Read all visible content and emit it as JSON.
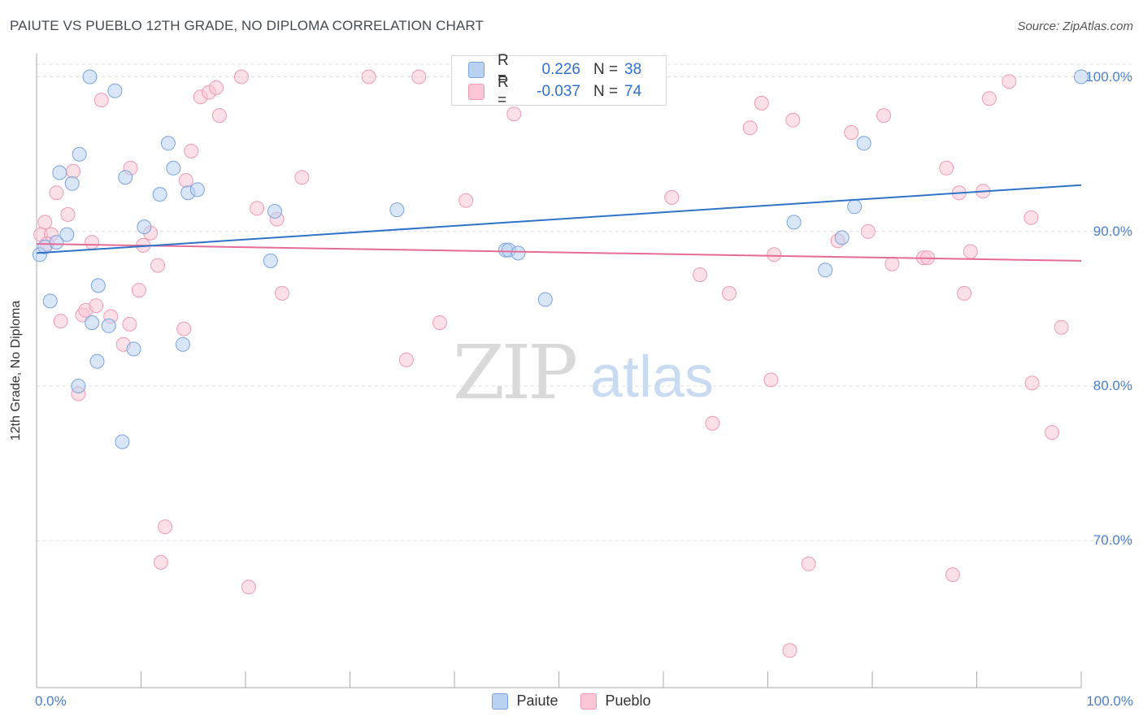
{
  "header": {
    "title": "PAIUTE VS PUEBLO 12TH GRADE, NO DIPLOMA CORRELATION CHART",
    "source": "Source: ZipAtlas.com"
  },
  "watermark": {
    "zip": "ZIP",
    "atlas": "atlas"
  },
  "legend": {
    "series": [
      {
        "swatch": "blue",
        "r_label": "R =",
        "r_value": "0.226",
        "n_label": "N =",
        "n_value": "38"
      },
      {
        "swatch": "pink",
        "r_label": "R =",
        "r_value": "-0.037",
        "n_label": "N =",
        "n_value": "74"
      }
    ]
  },
  "bottom_legend": [
    "Paiute",
    "Pueblo"
  ],
  "colors": {
    "paiute_fill": "#b9d2f2",
    "paiute_stroke": "#7aa3dc",
    "paiute_line": "#2f72c9",
    "pueblo_fill": "#f9c6d6",
    "pueblo_stroke": "#ee9ab4",
    "pueblo_line": "#e46c95",
    "value_text": "#2f6fcf",
    "grid": "#dcdcdc"
  },
  "chart_data": {
    "type": "scatter",
    "title": "PAIUTE VS PUEBLO 12TH GRADE, NO DIPLOMA CORRELATION CHART",
    "xlabel": "",
    "ylabel": "12th Grade, No Diploma",
    "xlim": [
      0,
      100
    ],
    "ylim": [
      60.5,
      101.5
    ],
    "x_tick_labels": [
      "0.0%",
      "100.0%"
    ],
    "y_ticks": [
      70,
      80,
      90,
      100
    ],
    "y_tick_labels": [
      "70.0%",
      "80.0%",
      "90.0%",
      "100.0%"
    ],
    "series": [
      {
        "name": "Paiute",
        "color": "blue",
        "r": 0.226,
        "n": 38,
        "trend": {
          "x": [
            0,
            100
          ],
          "y": [
            88.6,
            93.0
          ]
        },
        "points": [
          [
            0.3,
            88.5
          ],
          [
            0.8,
            89.0
          ],
          [
            1.3,
            85.5
          ],
          [
            1.9,
            89.3
          ],
          [
            2.2,
            93.8
          ],
          [
            2.9,
            89.8
          ],
          [
            3.4,
            93.1
          ],
          [
            4.1,
            95.0
          ],
          [
            4.0,
            80.0
          ],
          [
            5.1,
            100.0
          ],
          [
            5.3,
            84.1
          ],
          [
            5.9,
            86.5
          ],
          [
            5.8,
            81.6
          ],
          [
            6.9,
            83.9
          ],
          [
            7.5,
            99.1
          ],
          [
            8.2,
            76.4
          ],
          [
            8.5,
            93.5
          ],
          [
            9.3,
            82.4
          ],
          [
            10.3,
            90.3
          ],
          [
            11.8,
            92.4
          ],
          [
            12.6,
            95.7
          ],
          [
            13.1,
            94.1
          ],
          [
            14.0,
            82.7
          ],
          [
            14.5,
            92.5
          ],
          [
            15.4,
            92.7
          ],
          [
            22.4,
            88.1
          ],
          [
            22.8,
            91.3
          ],
          [
            34.5,
            91.4
          ],
          [
            44.9,
            88.8
          ],
          [
            45.2,
            88.8
          ],
          [
            46.1,
            88.6
          ],
          [
            48.7,
            85.6
          ],
          [
            72.5,
            90.6
          ],
          [
            75.5,
            87.5
          ],
          [
            77.1,
            89.6
          ],
          [
            78.3,
            91.6
          ],
          [
            79.2,
            95.7
          ],
          [
            100.0,
            100.0
          ]
        ]
      },
      {
        "name": "Pueblo",
        "color": "pink",
        "r": -0.037,
        "n": 74,
        "trend": {
          "x": [
            0,
            100
          ],
          "y": [
            89.2,
            88.1
          ]
        },
        "points": [
          [
            0.4,
            89.8
          ],
          [
            0.8,
            90.6
          ],
          [
            1.4,
            89.8
          ],
          [
            1.9,
            92.5
          ],
          [
            2.3,
            84.2
          ],
          [
            3.0,
            91.1
          ],
          [
            3.5,
            93.9
          ],
          [
            4.0,
            79.5
          ],
          [
            4.4,
            84.6
          ],
          [
            4.7,
            84.9
          ],
          [
            5.3,
            89.3
          ],
          [
            5.7,
            85.2
          ],
          [
            6.2,
            98.5
          ],
          [
            7.1,
            84.5
          ],
          [
            8.3,
            82.7
          ],
          [
            8.9,
            84.0
          ],
          [
            9.0,
            94.1
          ],
          [
            9.8,
            86.2
          ],
          [
            10.2,
            89.1
          ],
          [
            10.9,
            89.9
          ],
          [
            11.6,
            87.8
          ],
          [
            11.9,
            68.6
          ],
          [
            12.3,
            70.9
          ],
          [
            14.1,
            83.7
          ],
          [
            14.3,
            93.3
          ],
          [
            14.8,
            95.2
          ],
          [
            15.7,
            98.7
          ],
          [
            16.5,
            99.0
          ],
          [
            17.2,
            99.3
          ],
          [
            17.5,
            97.5
          ],
          [
            19.6,
            100.0
          ],
          [
            20.3,
            67.0
          ],
          [
            21.1,
            91.5
          ],
          [
            23.0,
            90.8
          ],
          [
            23.5,
            86.0
          ],
          [
            25.4,
            93.5
          ],
          [
            31.8,
            100.0
          ],
          [
            35.4,
            81.7
          ],
          [
            36.6,
            100.0
          ],
          [
            38.6,
            84.1
          ],
          [
            41.1,
            92.0
          ],
          [
            45.7,
            97.6
          ],
          [
            47.2,
            100.0
          ],
          [
            60.8,
            92.2
          ],
          [
            63.5,
            87.2
          ],
          [
            64.7,
            77.6
          ],
          [
            66.3,
            86.0
          ],
          [
            68.3,
            96.7
          ],
          [
            69.4,
            98.3
          ],
          [
            70.3,
            80.4
          ],
          [
            70.6,
            88.5
          ],
          [
            72.1,
            62.9
          ],
          [
            72.4,
            97.2
          ],
          [
            73.9,
            68.5
          ],
          [
            76.7,
            89.4
          ],
          [
            78.0,
            96.4
          ],
          [
            79.6,
            90.0
          ],
          [
            81.1,
            97.5
          ],
          [
            81.9,
            87.9
          ],
          [
            84.9,
            88.3
          ],
          [
            85.3,
            88.3
          ],
          [
            87.1,
            94.1
          ],
          [
            87.7,
            67.8
          ],
          [
            88.3,
            92.5
          ],
          [
            88.8,
            86.0
          ],
          [
            89.4,
            88.7
          ],
          [
            90.6,
            92.6
          ],
          [
            91.2,
            98.6
          ],
          [
            93.1,
            99.7
          ],
          [
            95.2,
            90.9
          ],
          [
            95.3,
            80.2
          ],
          [
            97.2,
            77.0
          ],
          [
            98.1,
            83.8
          ],
          [
            1.0,
            89.2
          ]
        ]
      }
    ]
  }
}
